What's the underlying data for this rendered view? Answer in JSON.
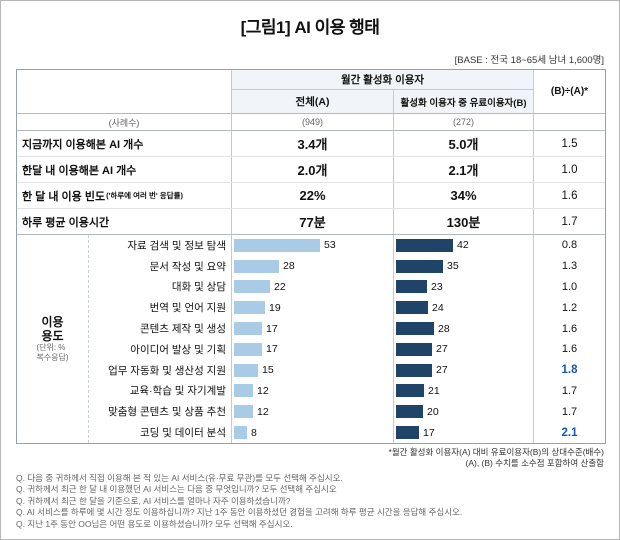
{
  "page": {
    "title": "[그림1] AI 이용 행태",
    "base_note": "[BASE : 전국 18~65세 남녀 1,600명]"
  },
  "table": {
    "header": {
      "group_label": "월간 활성화 이용자",
      "col_a": "전체(A)",
      "col_b": "활성화 이용자 중 유료이용자(B)",
      "ratio": "(B)÷(A)*",
      "sample_label": "(사례수)",
      "sample_a": "(949)",
      "sample_b": "(272)"
    },
    "stats_rows": [
      {
        "label": "지금까지 이용해본 AI 개수",
        "suffix": "",
        "a": "3.4개",
        "b": "5.0개",
        "ratio": "1.5"
      },
      {
        "label": "한달 내 이용해본 AI 개수",
        "suffix": "",
        "a": "2.0개",
        "b": "2.1개",
        "ratio": "1.0"
      },
      {
        "label": "한 달 내 이용 빈도",
        "suffix": "('하루에 여러 번' 응답률)",
        "a": "22%",
        "b": "34%",
        "ratio": "1.6"
      },
      {
        "label": "하루 평균 이용시간",
        "suffix": "",
        "a": "77분",
        "b": "130분",
        "ratio": "1.7"
      }
    ],
    "usage": {
      "section_title_lines": [
        "이용",
        "용도"
      ],
      "unit_note_lines": [
        "(단위: %",
        "복수응답)"
      ]
    }
  },
  "chart_data": {
    "type": "bar",
    "title": "이용 용도 (단위: %, 복수응답)",
    "categories": [
      "자료 검색 및 정보 탐색",
      "문서 작성 및 요약",
      "대화 및 상담",
      "번역 및 언어 지원",
      "콘텐츠 제작 및 생성",
      "아이디어 발상 및 기획",
      "업무 자동화 및 생산성 지원",
      "교육·학습 및 자기계발",
      "맞춤형 콘텐츠 및 상품 추천",
      "코딩 및 데이터 분석"
    ],
    "series": [
      {
        "name": "전체(A)",
        "values": [
          53,
          28,
          22,
          19,
          17,
          17,
          15,
          12,
          12,
          8
        ]
      },
      {
        "name": "활성화 이용자 중 유료이용자(B)",
        "values": [
          42,
          35,
          23,
          24,
          28,
          27,
          27,
          21,
          20,
          17
        ]
      }
    ],
    "ratios": [
      "0.8",
      "1.3",
      "1.0",
      "1.2",
      "1.6",
      "1.6",
      "1.8",
      "1.7",
      "1.7",
      "2.1"
    ],
    "highlight": [
      false,
      false,
      false,
      false,
      false,
      false,
      true,
      false,
      false,
      true
    ],
    "colors": {
      "series_a": "#A9CBE6",
      "series_b": "#1F4468",
      "ratio_highlight": "#1058B8"
    }
  },
  "footnotes": [
    "*월간 활성화 이용자(A) 대비 유료이용자(B)의 상대수준(배수)",
    "(A), (B) 수치를 소수점 포함하여 산출함"
  ],
  "questions": [
    "Q. 다음 중 귀하께서 직접 이용해 본 적 있는 AI 서비스(유·무료 무관)를 모두 선택해 주십시오.",
    "Q. 귀하께서 최근 한 달 내 이용했던 AI 서비스는 다음 중 무엇입니까? 모두 선택해 주십시오",
    "Q. 귀하께서 최근 한 달을 기준으로, AI 서비스를 얼마나 자주 이용하셨습니까?",
    "Q. AI 서비스를 하루에 몇 시간 정도 이용하십니까? 지난 1주 동안 이용하셨던 경험을 고려해 하루 평균 시간을 응답해 주십시오.",
    "Q. 지난 1주 동안 OO님은 어떤 용도로 이용하셨습니까? 모두 선택해 주십시오."
  ]
}
